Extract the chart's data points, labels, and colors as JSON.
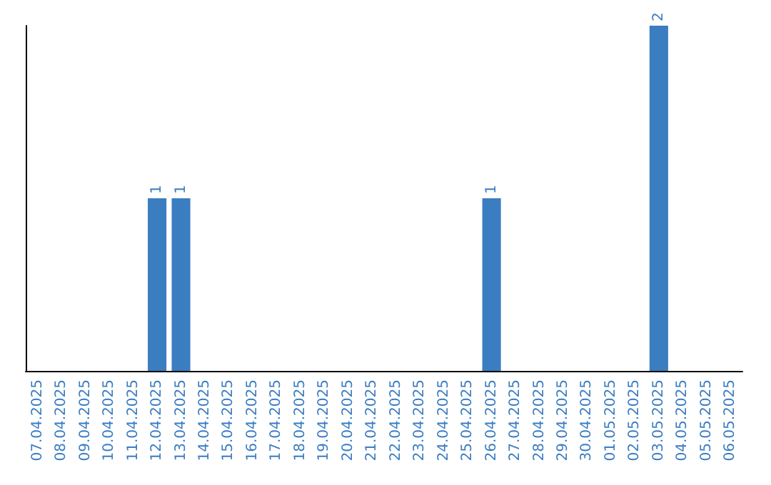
{
  "chart_data": {
    "type": "bar",
    "categories": [
      "07.04.2025",
      "08.04.2025",
      "09.04.2025",
      "10.04.2025",
      "11.04.2025",
      "12.04.2025",
      "13.04.2025",
      "14.04.2025",
      "15.04.2025",
      "16.04.2025",
      "17.04.2025",
      "18.04.2025",
      "19.04.2025",
      "20.04.2025",
      "21.04.2025",
      "22.04.2025",
      "23.04.2025",
      "24.04.2025",
      "25.04.2025",
      "26.04.2025",
      "27.04.2025",
      "28.04.2025",
      "29.04.2025",
      "30.04.2025",
      "01.05.2025",
      "02.05.2025",
      "03.05.2025",
      "04.05.2025",
      "05.05.2025",
      "06.05.2025"
    ],
    "values": [
      0,
      0,
      0,
      0,
      0,
      1,
      1,
      0,
      0,
      0,
      0,
      0,
      0,
      0,
      0,
      0,
      0,
      0,
      0,
      1,
      0,
      0,
      0,
      0,
      0,
      0,
      2,
      0,
      0,
      0
    ],
    "value_labels": [
      null,
      null,
      null,
      null,
      null,
      "1",
      "1",
      null,
      null,
      null,
      null,
      null,
      null,
      null,
      null,
      null,
      null,
      null,
      null,
      "1",
      null,
      null,
      null,
      null,
      null,
      null,
      "2",
      null,
      null,
      null
    ],
    "color": "#3b7dc1",
    "tick_labels": "x",
    "grid": false
  }
}
